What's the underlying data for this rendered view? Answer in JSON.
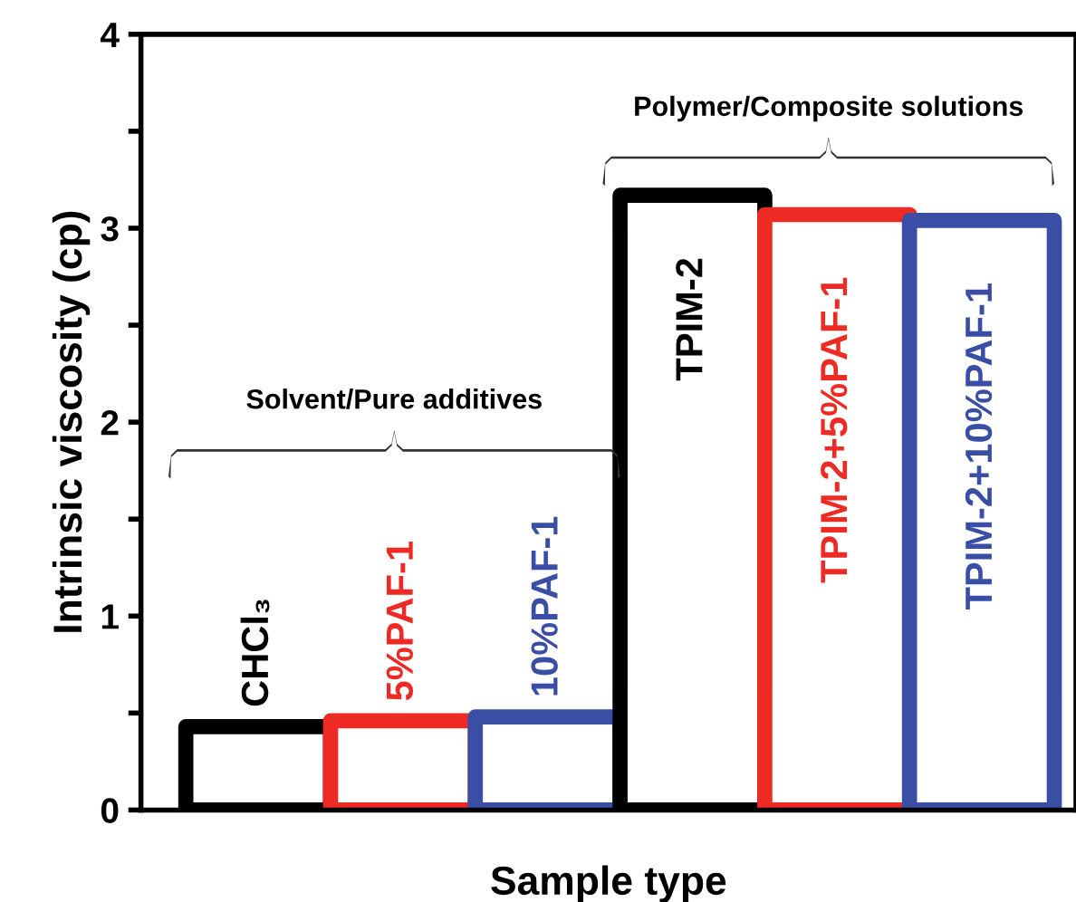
{
  "chart_data": {
    "type": "bar",
    "xlabel": "Sample type",
    "ylabel": "Intrinsic viscosity (cp)",
    "categories": [
      "CHCl₃",
      "5%PAF-1",
      "10%PAF-1",
      "TPIM-2",
      "TPIM-2+5%PAF-1",
      "TPIM-2+10%PAF-1"
    ],
    "values": [
      0.43,
      0.46,
      0.48,
      3.17,
      3.07,
      3.04
    ],
    "colors": [
      "#000000",
      "#ee2a24",
      "#3a4ea6",
      "#000000",
      "#ee2a24",
      "#3a4ea6"
    ],
    "ylim": [
      0,
      4
    ],
    "yticks": [
      0,
      {
        "value": 0.5,
        "label": null
      },
      1,
      {
        "value": 1.5,
        "label": null
      },
      2,
      {
        "value": 2.5,
        "label": null
      },
      3,
      {
        "value": 3.5,
        "label": null
      },
      4
    ],
    "annotations": [
      "Solvent/Pure additives",
      "Polymer/Composite solutions"
    ],
    "grid": false,
    "legend": false
  }
}
